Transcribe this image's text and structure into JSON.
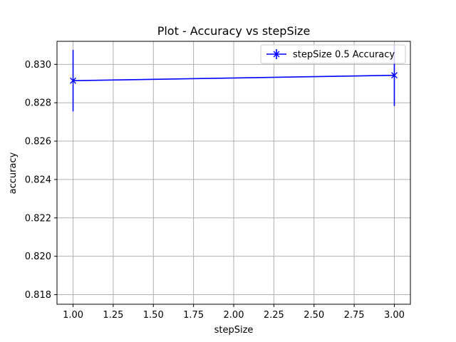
{
  "chart_data": {
    "type": "line",
    "title": "Plot - Accuracy vs stepSize",
    "xlabel": "stepSize",
    "ylabel": "accuracy",
    "xlim": [
      0.9,
      3.1
    ],
    "ylim": [
      0.8175,
      0.8312
    ],
    "xticks": [
      1.0,
      1.25,
      1.5,
      1.75,
      2.0,
      2.25,
      2.5,
      2.75,
      3.0
    ],
    "xtick_labels": [
      "1.00",
      "1.25",
      "1.50",
      "1.75",
      "2.00",
      "2.25",
      "2.50",
      "2.75",
      "3.00"
    ],
    "yticks": [
      0.818,
      0.82,
      0.822,
      0.824,
      0.826,
      0.828,
      0.83
    ],
    "ytick_labels": [
      "0.818",
      "0.820",
      "0.822",
      "0.824",
      "0.826",
      "0.828",
      "0.830"
    ],
    "grid": true,
    "legend_position": "top-right",
    "series": [
      {
        "name": "stepSize 0.5 Accuracy",
        "color": "#0000ff",
        "marker": "x",
        "x": [
          1.0,
          3.0
        ],
        "y": [
          0.82915,
          0.82943
        ],
        "yerr": [
          0.0016,
          0.0016
        ]
      }
    ]
  }
}
